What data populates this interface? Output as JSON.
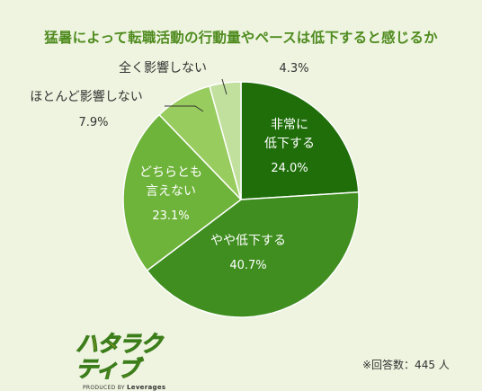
{
  "chart_data": {
    "type": "pie",
    "title": "猛暑によって転職活動の行動量やペースは低下すると感じるか",
    "slices": [
      {
        "label_lines": [
          "非常に",
          "低下する"
        ],
        "value": 24.0,
        "value_text": "24.0%",
        "color": "#1f6e0a",
        "label_color": "#ffffff"
      },
      {
        "label_lines": [
          "やや低下する"
        ],
        "value": 40.7,
        "value_text": "40.7%",
        "color": "#3f8e1f",
        "label_color": "#ffffff"
      },
      {
        "label_lines": [
          "どちらとも",
          "言えない"
        ],
        "value": 23.1,
        "value_text": "23.1%",
        "color": "#6eb33a",
        "label_color": "#ffffff"
      },
      {
        "label_lines": [
          "ほとんど影響しない"
        ],
        "value": 7.9,
        "value_text": "7.9%",
        "color": "#98cc5e",
        "label_color": "#333333"
      },
      {
        "label_lines": [
          "全く影響しない"
        ],
        "value": 4.3,
        "value_text": "4.3%",
        "color": "#c1e09e",
        "label_color": "#333333"
      }
    ]
  },
  "logo": {
    "text": "ハタラクティブ",
    "sub_prefix": "PRODUCED BY",
    "sub_brand": "Leverages"
  },
  "footnote": "※回答数：445 人"
}
